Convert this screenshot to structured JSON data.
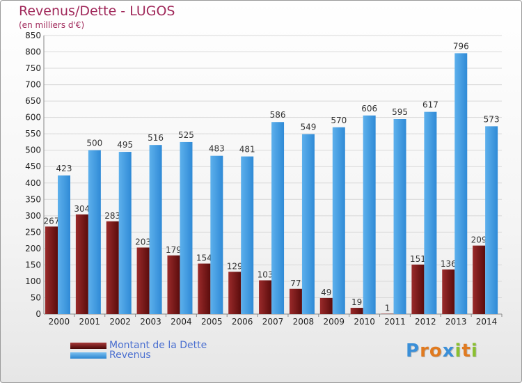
{
  "title": "Revenus/Dette - LUGOS",
  "subtitle": "(en milliers d'€)",
  "logo_text": "Proxiti",
  "colors": {
    "dette": "#7a1a1a",
    "revenus": "#3a9ae0",
    "text_title": "#a0285a",
    "legend_text": "#4a6fd0"
  },
  "chart_data": {
    "type": "bar",
    "title": "Revenus/Dette - LUGOS",
    "ylabel": "(en milliers d'€)",
    "ylim": [
      0,
      850
    ],
    "yticks": [
      0,
      50,
      100,
      150,
      200,
      250,
      300,
      350,
      400,
      450,
      500,
      550,
      600,
      650,
      700,
      750,
      800,
      850
    ],
    "categories": [
      "2000",
      "2001",
      "2002",
      "2003",
      "2004",
      "2005",
      "2006",
      "2007",
      "2008",
      "2009",
      "2010",
      "2011",
      "2012",
      "2013",
      "2014"
    ],
    "series": [
      {
        "name": "Montant de la Dette",
        "values": [
          267,
          304,
          283,
          203,
          179,
          154,
          129,
          103,
          77,
          49,
          19,
          1,
          151,
          136,
          209
        ]
      },
      {
        "name": "Revenus",
        "values": [
          423,
          500,
          495,
          516,
          525,
          483,
          481,
          586,
          549,
          570,
          606,
          595,
          617,
          796,
          573
        ]
      }
    ],
    "grid": true,
    "legend_position": "bottom-left"
  }
}
